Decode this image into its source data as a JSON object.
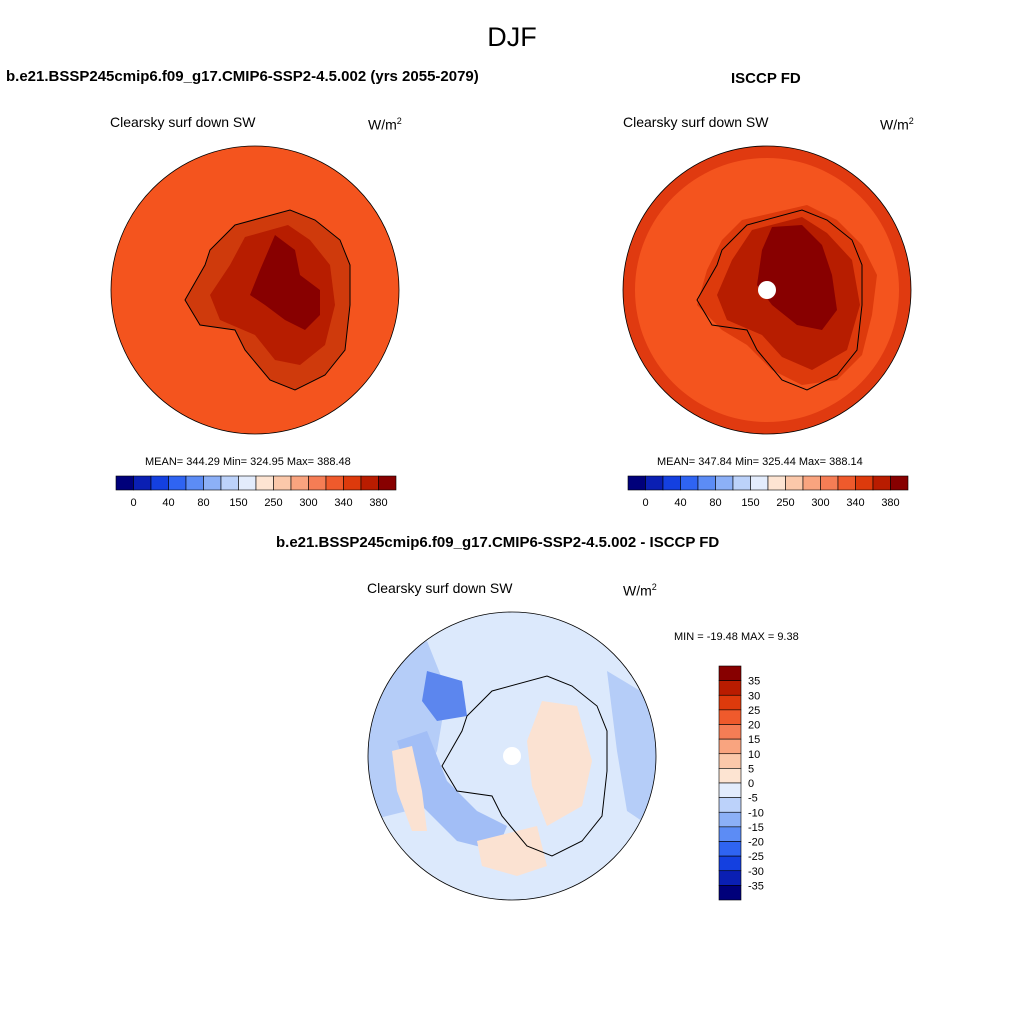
{
  "title": "DJF",
  "panels": [
    {
      "title": "b.e21.BSSP245cmip6.f09_g17.CMIP6-SSP2-4.5.002 (yrs 2055-2079)",
      "variable": "Clearsky surf down SW",
      "units_base": "W/m",
      "units_exp": "2",
      "stats": "MEAN= 344.29  Min= 324.95  Max= 388.48"
    },
    {
      "title": "ISCCP FD",
      "variable": "Clearsky surf down SW",
      "units_base": "W/m",
      "units_exp": "2",
      "stats": "MEAN= 347.84  Min= 325.44  Max= 388.14"
    },
    {
      "title": "b.e21.BSSP245cmip6.f09_g17.CMIP6-SSP2-4.5.002 - ISCCP FD",
      "variable": "Clearsky surf down SW",
      "units_base": "W/m",
      "units_exp": "2",
      "stats": "MIN = -19.48 MAX =   9.38"
    }
  ],
  "colorbar_main": {
    "colors": [
      "#00007a",
      "#0a1fb3",
      "#1440e0",
      "#2f64f2",
      "#5c8cf5",
      "#8cb0f7",
      "#bcd2fa",
      "#e3ecfc",
      "#fde4d2",
      "#fbc8aa",
      "#f9a47f",
      "#f57d55",
      "#ef5a2c",
      "#dd3a0c",
      "#b91c00",
      "#870000"
    ],
    "labels": [
      "0",
      "40",
      "80",
      "150",
      "250",
      "300",
      "340",
      "380"
    ]
  },
  "colorbar_diff": {
    "colors": [
      "#870000",
      "#b91c00",
      "#dd3a0c",
      "#ef5a2c",
      "#f57d55",
      "#f9a47f",
      "#fbc8aa",
      "#fde4d2",
      "#e3ecfc",
      "#bcd2fa",
      "#8cb0f7",
      "#5c8cf5",
      "#2f64f2",
      "#1440e0",
      "#0a1fb3",
      "#00007a"
    ],
    "labels": [
      "35",
      "30",
      "25",
      "20",
      "15",
      "10",
      "5",
      "0",
      "-5",
      "-10",
      "-15",
      "-20",
      "-25",
      "-30",
      "-35"
    ]
  }
}
